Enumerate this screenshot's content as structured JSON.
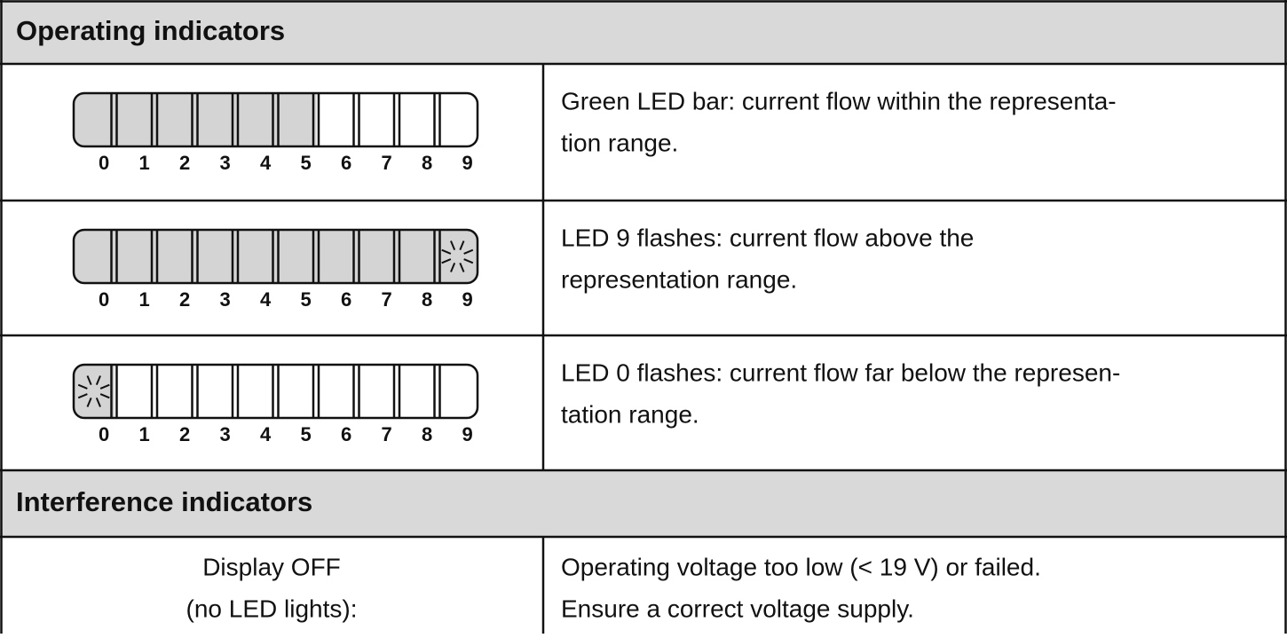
{
  "header1": "Operating indicators",
  "rows": [
    {
      "led_labels": [
        "0",
        "1",
        "2",
        "3",
        "4",
        "5",
        "6",
        "7",
        "8",
        "9"
      ],
      "text": [
        "Green LED bar: current flow within the representa-",
        "tion range."
      ]
    },
    {
      "led_labels": [
        "0",
        "1",
        "2",
        "3",
        "4",
        "5",
        "6",
        "7",
        "8",
        "9"
      ],
      "text": [
        "LED 9 flashes: current flow above the",
        "representation range."
      ]
    },
    {
      "led_labels": [
        "0",
        "1",
        "2",
        "3",
        "4",
        "5",
        "6",
        "7",
        "8",
        "9"
      ],
      "text": [
        "LED 0 flashes: current flow far below the represen-",
        "tation range."
      ]
    }
  ],
  "header2": "Interference indicators",
  "last_row": {
    "left": [
      "Display OFF",
      "(no LED lights):"
    ],
    "right": [
      "Operating voltage too low (< 19 V) or failed.",
      "Ensure a correct voltage supply."
    ]
  }
}
